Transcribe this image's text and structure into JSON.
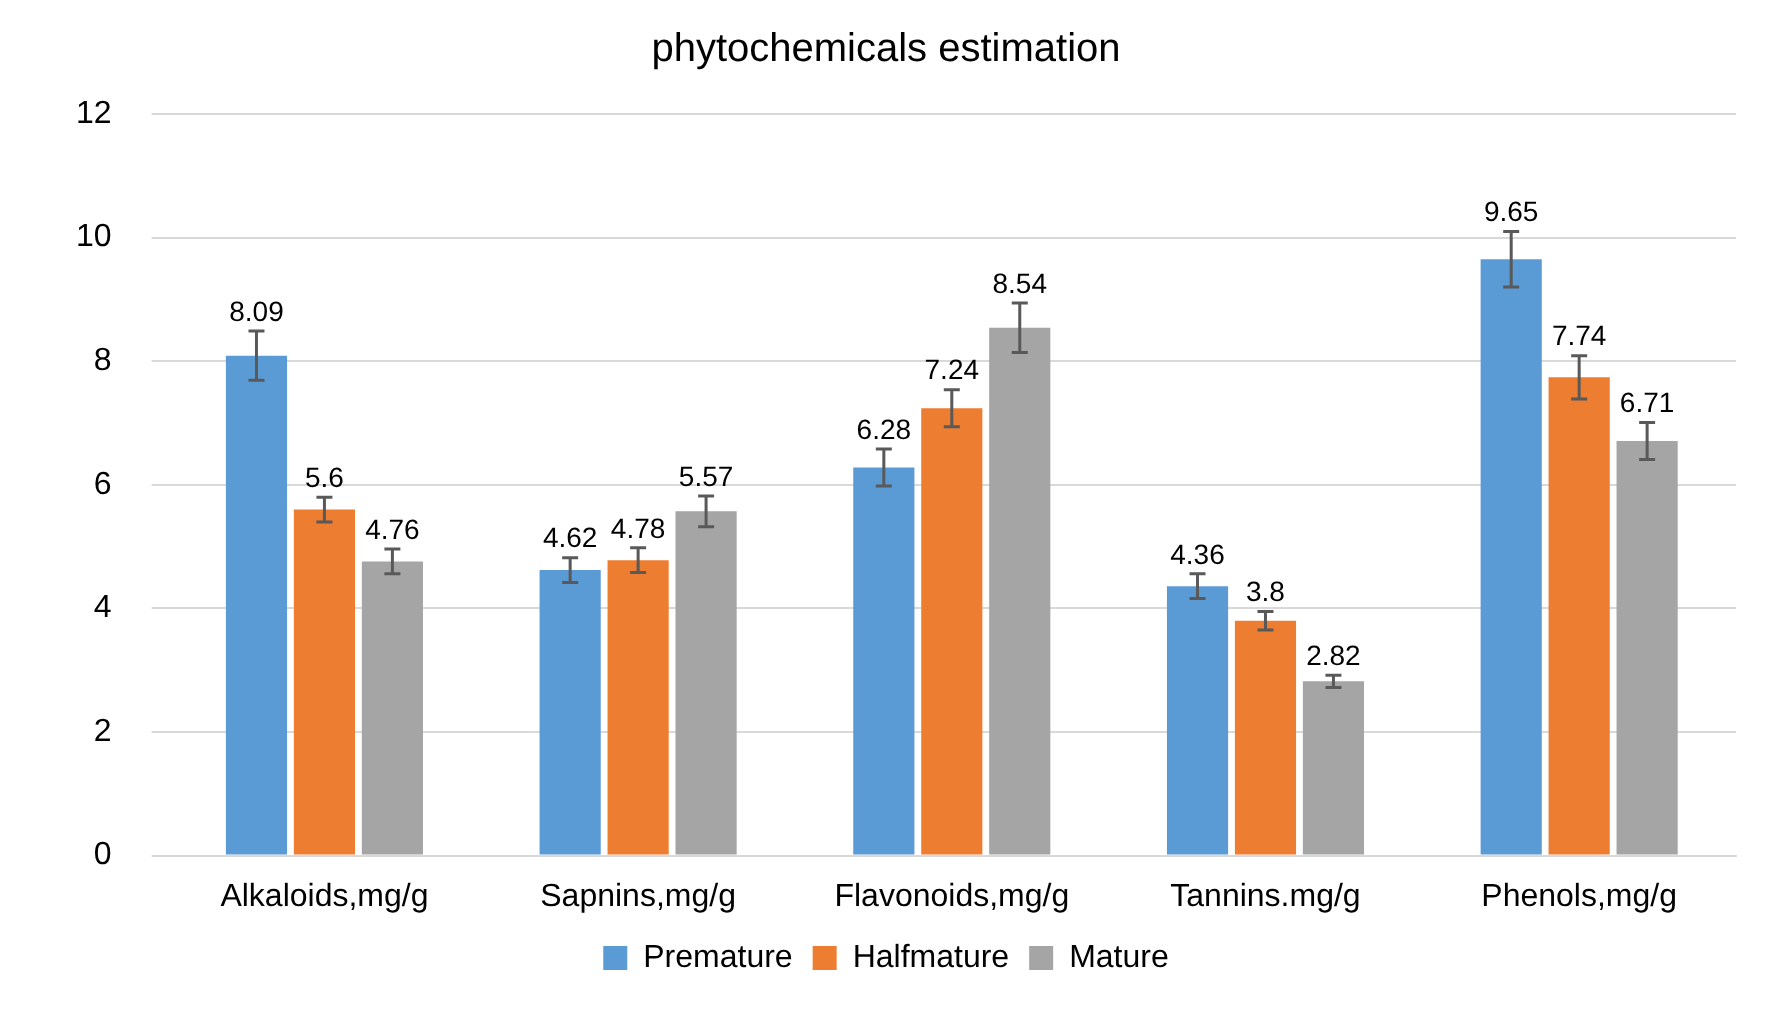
{
  "chart_data": {
    "type": "bar",
    "title": "phytochemicals estimation",
    "categories": [
      "Alkaloids,mg/g",
      "Sapnins,mg/g",
      "Flavonoids,mg/g",
      "Tannins.mg/g",
      "Phenols,mg/g"
    ],
    "series": [
      {
        "name": "Premature",
        "color": "#5b9bd5",
        "values": [
          8.09,
          4.62,
          6.28,
          4.36,
          9.65
        ],
        "errors": [
          0.4,
          0.2,
          0.3,
          0.2,
          0.45
        ]
      },
      {
        "name": "Halfmature",
        "color": "#ed7d31",
        "values": [
          5.6,
          4.78,
          7.24,
          3.8,
          7.74
        ],
        "errors": [
          0.2,
          0.2,
          0.3,
          0.15,
          0.35
        ]
      },
      {
        "name": "Mature",
        "color": "#a5a5a5",
        "values": [
          4.76,
          5.57,
          8.54,
          2.82,
          6.71
        ],
        "errors": [
          0.2,
          0.25,
          0.4,
          0.1,
          0.3
        ]
      }
    ],
    "ylim": [
      0,
      12
    ],
    "yticks": [
      0,
      2,
      4,
      6,
      8,
      10,
      12
    ],
    "grid": "y",
    "legend": "bottom",
    "data_labels": true
  }
}
